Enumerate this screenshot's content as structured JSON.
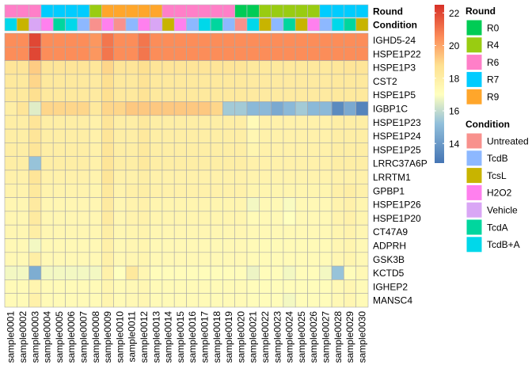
{
  "chart_data": {
    "type": "heatmap",
    "title": "",
    "xlabel": "",
    "ylabel": "",
    "samples": [
      "sample0001",
      "sample0002",
      "sample0003",
      "sample0004",
      "sample0005",
      "sample0006",
      "sample0007",
      "sample0008",
      "sample0009",
      "sample0010",
      "sample0011",
      "sample0012",
      "sample0013",
      "sample0014",
      "sample0015",
      "sample0016",
      "sample0017",
      "sample0018",
      "sample0019",
      "sample0020",
      "sample0021",
      "sample0022",
      "sample0023",
      "sample0024",
      "sample0025",
      "sample0026",
      "sample0027",
      "sample0028",
      "sample0029",
      "sample0030"
    ],
    "genes": [
      "IGHD5-24",
      "HSPE1P22",
      "HSPE1P3",
      "CST2",
      "HSPE1P5",
      "IGBP1C",
      "HSPE1P23",
      "HSPE1P24",
      "HSPE1P25",
      "LRRC37A6P",
      "LRRTM1",
      "GPBP1",
      "HSPE1P26",
      "HSPE1P20",
      "CT47A9",
      "ADPRH",
      "GSK3B",
      "KCTD5",
      "IGHEP2",
      "MANSC4"
    ],
    "values": [
      [
        20.5,
        20.5,
        22.0,
        20.5,
        20.5,
        20.5,
        20.5,
        20.3,
        21.0,
        20.5,
        20.5,
        21.0,
        20.5,
        20.5,
        20.5,
        20.5,
        20.5,
        20.5,
        20.5,
        20.5,
        20.5,
        20.5,
        20.5,
        20.5,
        20.5,
        20.5,
        20.5,
        20.5,
        20.5,
        20.5
      ],
      [
        20.5,
        20.5,
        22.0,
        20.5,
        20.5,
        20.5,
        20.5,
        20.3,
        21.0,
        20.5,
        20.5,
        21.0,
        20.5,
        20.5,
        20.5,
        20.5,
        20.5,
        20.5,
        20.5,
        20.5,
        20.5,
        20.5,
        20.5,
        20.5,
        20.5,
        20.5,
        20.5,
        20.5,
        20.5,
        20.5
      ],
      [
        18.5,
        18.5,
        19.2,
        18.5,
        18.5,
        18.5,
        18.5,
        18.4,
        19.0,
        18.5,
        18.5,
        18.8,
        18.5,
        18.5,
        18.5,
        18.5,
        18.5,
        18.5,
        18.5,
        18.5,
        18.3,
        18.3,
        18.3,
        18.3,
        18.3,
        18.3,
        18.3,
        18.4,
        18.5,
        18.5
      ],
      [
        18.3,
        18.3,
        19.0,
        18.3,
        18.3,
        18.3,
        18.3,
        18.2,
        18.8,
        18.3,
        18.3,
        18.6,
        18.3,
        18.3,
        18.3,
        18.3,
        18.3,
        18.3,
        18.3,
        18.3,
        18.2,
        18.2,
        18.2,
        18.2,
        18.2,
        18.2,
        18.2,
        18.3,
        18.3,
        18.3
      ],
      [
        18.3,
        18.3,
        18.8,
        18.3,
        18.3,
        18.3,
        18.3,
        18.2,
        18.8,
        18.3,
        18.3,
        18.6,
        18.3,
        18.3,
        18.3,
        18.3,
        18.3,
        18.3,
        18.3,
        18.3,
        18.2,
        18.2,
        18.2,
        18.2,
        18.2,
        18.2,
        18.2,
        18.3,
        18.3,
        18.3
      ],
      [
        18.0,
        18.5,
        16.5,
        19.0,
        19.0,
        19.0,
        19.0,
        18.3,
        19.0,
        19.0,
        19.3,
        19.3,
        19.3,
        19.3,
        19.3,
        19.3,
        19.3,
        19.0,
        15.5,
        15.5,
        15.0,
        15.0,
        14.5,
        15.0,
        15.5,
        15.0,
        15.0,
        13.5,
        14.5,
        13.3
      ],
      [
        18.0,
        18.0,
        18.5,
        18.0,
        18.0,
        18.0,
        18.0,
        17.8,
        18.5,
        18.0,
        18.0,
        18.3,
        18.0,
        18.0,
        18.0,
        18.0,
        18.0,
        18.0,
        18.0,
        18.0,
        17.3,
        17.8,
        17.8,
        17.8,
        17.8,
        17.8,
        17.8,
        18.0,
        18.0,
        18.0
      ],
      [
        18.0,
        18.0,
        18.5,
        18.0,
        18.0,
        18.0,
        18.0,
        17.8,
        18.5,
        18.0,
        18.0,
        18.3,
        18.0,
        18.0,
        18.0,
        18.0,
        18.0,
        18.0,
        18.0,
        18.0,
        17.5,
        17.8,
        17.8,
        17.8,
        17.8,
        17.8,
        17.8,
        18.0,
        18.0,
        18.0
      ],
      [
        18.0,
        18.0,
        18.5,
        18.0,
        18.0,
        18.0,
        18.0,
        17.8,
        18.5,
        18.0,
        18.0,
        18.3,
        18.0,
        18.0,
        18.0,
        18.0,
        18.0,
        18.0,
        18.0,
        18.0,
        17.6,
        17.8,
        17.8,
        17.8,
        17.8,
        17.8,
        17.8,
        18.0,
        18.0,
        18.0
      ],
      [
        18.0,
        18.0,
        15.3,
        18.0,
        18.0,
        18.0,
        18.0,
        17.8,
        18.5,
        18.0,
        18.0,
        18.3,
        18.0,
        18.0,
        18.0,
        18.0,
        18.0,
        18.0,
        18.0,
        18.0,
        17.8,
        17.8,
        17.8,
        17.8,
        17.8,
        17.8,
        17.8,
        18.0,
        18.0,
        18.0
      ],
      [
        17.8,
        17.8,
        18.5,
        17.8,
        17.8,
        17.8,
        17.8,
        17.7,
        18.5,
        17.8,
        17.8,
        18.0,
        17.8,
        17.8,
        17.8,
        17.8,
        17.8,
        17.8,
        17.8,
        17.8,
        17.7,
        17.7,
        17.7,
        17.7,
        17.7,
        17.7,
        17.7,
        17.8,
        17.8,
        17.8
      ],
      [
        17.7,
        17.7,
        18.3,
        17.7,
        17.7,
        17.7,
        17.7,
        17.6,
        18.3,
        17.7,
        17.9,
        18.0,
        17.8,
        17.8,
        17.8,
        17.8,
        17.8,
        17.8,
        17.8,
        17.8,
        17.6,
        17.6,
        17.6,
        17.6,
        17.6,
        17.6,
        17.6,
        17.9,
        18.0,
        17.8
      ],
      [
        17.5,
        17.5,
        18.2,
        17.5,
        17.5,
        17.5,
        17.5,
        17.5,
        18.2,
        17.5,
        17.7,
        17.8,
        17.6,
        17.6,
        17.6,
        17.6,
        17.6,
        17.6,
        17.6,
        17.6,
        16.8,
        17.4,
        17.4,
        16.9,
        17.4,
        17.4,
        17.4,
        17.7,
        17.8,
        17.6
      ],
      [
        17.5,
        17.5,
        18.2,
        17.5,
        17.5,
        17.5,
        17.5,
        17.5,
        18.2,
        17.5,
        17.7,
        17.8,
        17.6,
        17.6,
        17.6,
        17.6,
        17.6,
        17.6,
        17.6,
        17.6,
        17.3,
        17.4,
        17.4,
        17.0,
        17.4,
        17.4,
        17.4,
        17.7,
        17.8,
        17.6
      ],
      [
        17.5,
        17.5,
        18.0,
        17.5,
        17.5,
        17.5,
        17.5,
        17.5,
        18.0,
        17.5,
        17.6,
        17.7,
        17.5,
        17.5,
        17.5,
        17.5,
        17.5,
        17.5,
        17.5,
        17.5,
        17.4,
        17.4,
        17.4,
        17.4,
        17.4,
        17.4,
        17.4,
        17.6,
        17.7,
        17.5
      ],
      [
        17.4,
        17.4,
        16.8,
        17.4,
        17.4,
        17.4,
        17.4,
        17.4,
        17.9,
        17.4,
        17.5,
        17.6,
        17.4,
        17.4,
        17.4,
        17.4,
        17.4,
        17.4,
        17.4,
        17.4,
        17.3,
        17.3,
        17.3,
        17.3,
        17.3,
        17.3,
        17.3,
        17.5,
        17.6,
        17.4
      ],
      [
        17.4,
        17.4,
        18.0,
        17.4,
        17.4,
        17.4,
        17.4,
        17.4,
        17.9,
        17.4,
        17.5,
        17.6,
        17.4,
        17.4,
        17.4,
        17.4,
        17.4,
        17.4,
        17.4,
        17.4,
        17.3,
        17.3,
        17.3,
        17.3,
        17.3,
        17.3,
        17.3,
        17.5,
        17.6,
        17.4
      ],
      [
        16.8,
        16.8,
        14.6,
        16.8,
        16.8,
        16.8,
        16.8,
        16.8,
        17.8,
        17.0,
        18.3,
        17.5,
        17.2,
        17.2,
        17.2,
        17.2,
        17.2,
        17.2,
        17.2,
        17.2,
        16.7,
        17.2,
        17.2,
        16.8,
        17.2,
        17.2,
        16.8,
        15.3,
        17.2,
        17.4
      ],
      [
        17.3,
        17.3,
        17.6,
        17.3,
        17.3,
        17.3,
        17.3,
        17.3,
        17.6,
        17.3,
        17.4,
        17.5,
        17.3,
        17.3,
        17.3,
        17.3,
        17.3,
        17.3,
        17.3,
        17.3,
        17.2,
        17.2,
        17.2,
        17.2,
        17.2,
        17.2,
        17.2,
        17.4,
        17.5,
        17.3
      ],
      [
        17.3,
        17.3,
        17.8,
        17.3,
        17.3,
        17.3,
        17.3,
        17.3,
        17.6,
        17.3,
        17.4,
        17.5,
        17.3,
        17.3,
        17.3,
        17.3,
        17.3,
        17.3,
        17.3,
        17.3,
        17.2,
        17.2,
        17.2,
        16.8,
        17.2,
        17.2,
        17.2,
        17.4,
        17.5,
        17.3
      ]
    ],
    "color_scale": {
      "ticks": [
        14,
        16,
        18,
        20,
        22
      ],
      "range": [
        12.8,
        22.5
      ],
      "stops": [
        {
          "value": 12.8,
          "color": "#4575b4"
        },
        {
          "value": 15.2,
          "color": "#91bfdb"
        },
        {
          "value": 17.0,
          "color": "#ffffbf"
        },
        {
          "value": 18.8,
          "color": "#fee090"
        },
        {
          "value": 20.5,
          "color": "#fc8d59"
        },
        {
          "value": 22.5,
          "color": "#d73027"
        }
      ]
    },
    "annotations": {
      "round": {
        "label": "Round",
        "values": [
          "R6",
          "R6",
          "R6",
          "R7",
          "R7",
          "R7",
          "R7",
          "R4",
          "R9",
          "R9",
          "R9",
          "R9",
          "R9",
          "R6",
          "R6",
          "R6",
          "R6",
          "R6",
          "R6",
          "R0",
          "R0",
          "R4",
          "R4",
          "R4",
          "R4",
          "R4",
          "R7",
          "R7",
          "R7",
          "R7"
        ]
      },
      "condition": {
        "label": "Condition",
        "values": [
          "TcdB+A",
          "TcsL",
          "Vehicle",
          "H2O2",
          "TcdA",
          "TcdB+A",
          "TcdB",
          "Untreated",
          "H2O2",
          "Untreated",
          "TcdB",
          "H2O2",
          "Vehicle",
          "TcsL",
          "H2O2",
          "TcdB",
          "TcdB+A",
          "TcdA",
          "TcdB",
          "Untreated",
          "TcdB+A",
          "TcsL",
          "TcdB",
          "TcdA",
          "TcsL",
          "H2O2",
          "TcdB",
          "TcdB+A",
          "TcdA",
          "TcsL"
        ]
      }
    }
  },
  "legend": {
    "round": {
      "title": "Round",
      "items": [
        {
          "label": "R0",
          "color": "#00cc55"
        },
        {
          "label": "R4",
          "color": "#99cc11"
        },
        {
          "label": "R6",
          "color": "#ff7fc8"
        },
        {
          "label": "R7",
          "color": "#00ccff"
        },
        {
          "label": "R9",
          "color": "#ffa62b"
        }
      ]
    },
    "condition": {
      "title": "Condition",
      "items": [
        {
          "label": "Untreated",
          "color": "#f8918d"
        },
        {
          "label": "TcdB",
          "color": "#8db8ff"
        },
        {
          "label": "TcsL",
          "color": "#c8b400"
        },
        {
          "label": "H2O2",
          "color": "#ff80ee"
        },
        {
          "label": "Vehicle",
          "color": "#d9a6f5"
        },
        {
          "label": "TcdA",
          "color": "#00d69e"
        },
        {
          "label": "TcdB+A",
          "color": "#00d8ea"
        }
      ]
    }
  }
}
